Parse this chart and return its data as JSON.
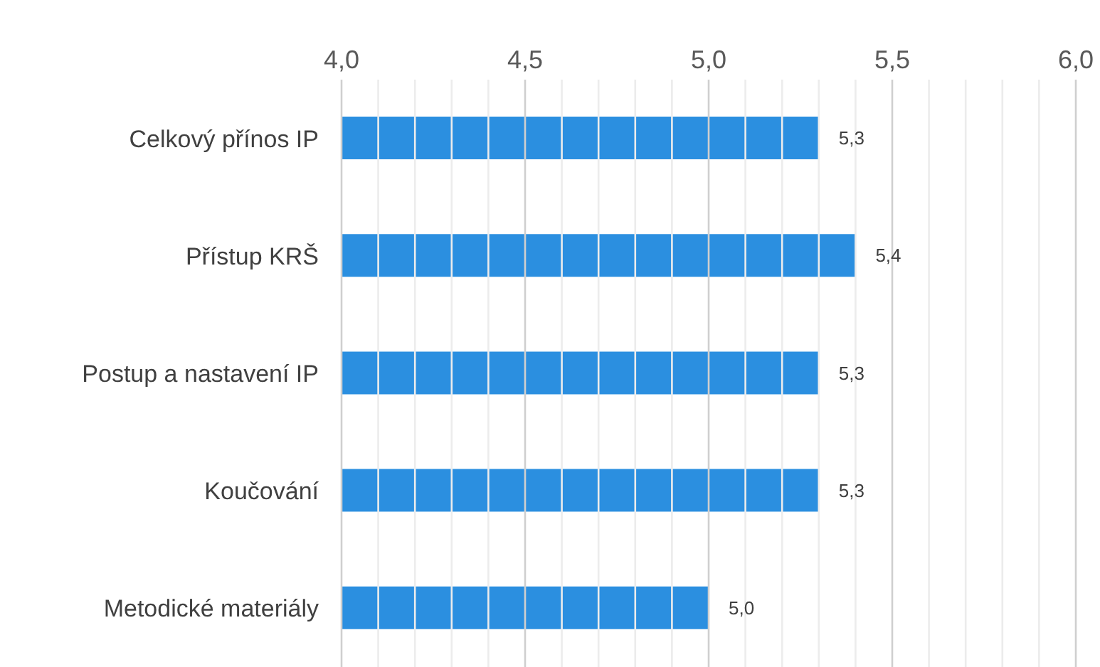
{
  "chart_data": {
    "type": "bar",
    "orientation": "horizontal",
    "categories": [
      "Celkový přínos IP",
      "Přístup KRŠ",
      "Postup a nastavení IP",
      "Koučování",
      "Metodické materiály"
    ],
    "values": [
      5.3,
      5.4,
      5.3,
      5.3,
      5.0
    ],
    "value_labels": [
      "5,3",
      "5,4",
      "5,3",
      "5,3",
      "5,0"
    ],
    "color": "#2b8fe0",
    "xlim": [
      4.0,
      6.0
    ],
    "xticks": [
      {
        "value": 4.0,
        "label": "4,0"
      },
      {
        "value": 4.1,
        "label": null
      },
      {
        "value": 4.2,
        "label": null
      },
      {
        "value": 4.3,
        "label": null
      },
      {
        "value": 4.4,
        "label": null
      },
      {
        "value": 4.5,
        "label": "4,5"
      },
      {
        "value": 4.6,
        "label": null
      },
      {
        "value": 4.7,
        "label": null
      },
      {
        "value": 4.8,
        "label": null
      },
      {
        "value": 4.9,
        "label": null
      },
      {
        "value": 5.0,
        "label": "5,0"
      },
      {
        "value": 5.1,
        "label": null
      },
      {
        "value": 5.2,
        "label": null
      },
      {
        "value": 5.3,
        "label": null
      },
      {
        "value": 5.4,
        "label": null
      },
      {
        "value": 5.5,
        "label": "5,5"
      },
      {
        "value": 5.6,
        "label": null
      },
      {
        "value": 5.7,
        "label": null
      },
      {
        "value": 5.8,
        "label": null
      },
      {
        "value": 5.9,
        "label": null
      },
      {
        "value": 6.0,
        "label": "6,0"
      }
    ],
    "grid": "x"
  }
}
